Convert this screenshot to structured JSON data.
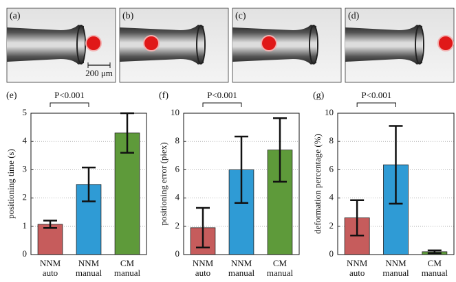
{
  "images": {
    "panels": [
      "(a)",
      "(b)",
      "(c)",
      "(d)"
    ],
    "scale_bar": "200 μm"
  },
  "chart_data": [
    {
      "type": "bar",
      "panel": "(e)",
      "y_label": "positioning time (s)",
      "annotation": "P<0.001",
      "categories": [
        [
          "NNM",
          "auto"
        ],
        [
          "NNM",
          "manual"
        ],
        [
          "CM",
          "manual"
        ]
      ],
      "values": [
        1.07,
        2.48,
        4.3
      ],
      "errors": [
        0.13,
        0.6,
        0.7
      ],
      "colors": [
        "#c65c5c",
        "#2f9bd5",
        "#5e9a3a"
      ],
      "ylim": [
        0,
        5
      ],
      "yticks": [
        0,
        1,
        2,
        3,
        4,
        5
      ],
      "grid": true
    },
    {
      "type": "bar",
      "panel": "(f)",
      "y_label": "positioning error (piex)",
      "annotation": "P<0.001",
      "categories": [
        [
          "NNM",
          "auto"
        ],
        [
          "NNM",
          "manual"
        ],
        [
          "CM",
          "manual"
        ]
      ],
      "values": [
        1.9,
        6.0,
        7.4
      ],
      "errors": [
        1.4,
        2.35,
        2.25
      ],
      "colors": [
        "#c65c5c",
        "#2f9bd5",
        "#5e9a3a"
      ],
      "ylim": [
        0,
        10
      ],
      "yticks": [
        0,
        2,
        4,
        6,
        8,
        10
      ],
      "grid": true
    },
    {
      "type": "bar",
      "panel": "(g)",
      "y_label": "deformation  percentage (%)",
      "annotation": "P<0.001",
      "categories": [
        [
          "NNM",
          "auto"
        ],
        [
          "NNM",
          "manual"
        ],
        [
          "CM",
          "manual"
        ]
      ],
      "values": [
        2.6,
        6.35,
        0.2
      ],
      "errors": [
        1.25,
        2.75,
        0.1
      ],
      "colors": [
        "#c65c5c",
        "#2f9bd5",
        "#5e9a3a"
      ],
      "ylim": [
        0,
        10
      ],
      "yticks": [
        0,
        2,
        4,
        6,
        8,
        10
      ],
      "grid": true
    }
  ]
}
